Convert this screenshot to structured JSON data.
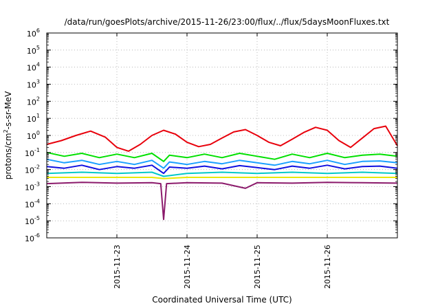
{
  "chart_data": {
    "type": "line",
    "title": "/data/run/goesPlots/archive/2015-11-26/23:00/flux/../flux/5daysMoonFluxes.txt",
    "xlabel": "Coordinated Universal Time (UTC)",
    "ylabel": "protons/cm²-s-sr-MeV",
    "ylabel_parts": {
      "pre": "protons/cm",
      "sup": "2",
      "post": "-s-sr-MeV"
    },
    "yscale": "log",
    "ylim": [
      1e-06,
      1000000.0
    ],
    "xlim": [
      "2015-11-22 00:00",
      "2015-11-27 00:00"
    ],
    "grid": true,
    "x_ticks": [
      {
        "date": "2015-11-23",
        "label": "2015-11-23"
      },
      {
        "date": "2015-11-24",
        "label": "2015-11-24"
      },
      {
        "date": "2015-11-25",
        "label": "2015-11-25"
      },
      {
        "date": "2015-11-26",
        "label": "2015-11-26"
      }
    ],
    "y_ticks": [
      {
        "value": 1e-06,
        "base": "10",
        "exp": "-6"
      },
      {
        "value": 1e-05,
        "base": "10",
        "exp": "-5"
      },
      {
        "value": 0.0001,
        "base": "10",
        "exp": "-4"
      },
      {
        "value": 0.001,
        "base": "10",
        "exp": "-3"
      },
      {
        "value": 0.01,
        "base": "10",
        "exp": "-2"
      },
      {
        "value": 0.1,
        "base": "10",
        "exp": "-1"
      },
      {
        "value": 1,
        "base": "10",
        "exp": "0"
      },
      {
        "value": 10.0,
        "base": "10",
        "exp": "1"
      },
      {
        "value": 100.0,
        "base": "10",
        "exp": "2"
      },
      {
        "value": 1000.0,
        "base": "10",
        "exp": "3"
      },
      {
        "value": 10000.0,
        "base": "10",
        "exp": "4"
      },
      {
        "value": 100000.0,
        "base": "10",
        "exp": "5"
      },
      {
        "value": 1000000.0,
        "base": "10",
        "exp": "6"
      }
    ],
    "series": [
      {
        "color": "#e8000b",
        "x": [
          "2015-11-22 00:00",
          "2015-11-22 05:00",
          "2015-11-22 10:00",
          "2015-11-22 15:00",
          "2015-11-22 20:00",
          "2015-11-23 00:00",
          "2015-11-23 04:00",
          "2015-11-23 08:00",
          "2015-11-23 12:00",
          "2015-11-23 16:00",
          "2015-11-23 20:00",
          "2015-11-24 00:00",
          "2015-11-24 04:00",
          "2015-11-24 08:00",
          "2015-11-24 12:00",
          "2015-11-24 16:00",
          "2015-11-24 20:00",
          "2015-11-25 00:00",
          "2015-11-25 04:00",
          "2015-11-25 08:00",
          "2015-11-25 12:00",
          "2015-11-25 16:00",
          "2015-11-25 20:00",
          "2015-11-26 00:00",
          "2015-11-26 04:00",
          "2015-11-26 08:00",
          "2015-11-26 12:00",
          "2015-11-26 16:00",
          "2015-11-26 20:00",
          "2015-11-27 00:00"
        ],
        "y": [
          0.3,
          0.5,
          1.0,
          1.8,
          0.8,
          0.2,
          0.12,
          0.3,
          1.0,
          2.0,
          1.2,
          0.4,
          0.22,
          0.3,
          0.7,
          1.6,
          2.2,
          1.0,
          0.4,
          0.25,
          0.6,
          1.5,
          3.0,
          2.0,
          0.5,
          0.2,
          0.7,
          2.5,
          3.5,
          0.25
        ]
      },
      {
        "color": "#00e000",
        "x": [
          "2015-11-22 00:00",
          "2015-11-22 06:00",
          "2015-11-22 12:00",
          "2015-11-22 18:00",
          "2015-11-23 00:00",
          "2015-11-23 06:00",
          "2015-11-23 12:00",
          "2015-11-23 16:00",
          "2015-11-23 18:00",
          "2015-11-24 00:00",
          "2015-11-24 06:00",
          "2015-11-24 12:00",
          "2015-11-24 18:00",
          "2015-11-25 00:00",
          "2015-11-25 06:00",
          "2015-11-25 12:00",
          "2015-11-25 18:00",
          "2015-11-26 00:00",
          "2015-11-26 06:00",
          "2015-11-26 12:00",
          "2015-11-26 18:00",
          "2015-11-27 00:00"
        ],
        "y": [
          0.1,
          0.06,
          0.09,
          0.05,
          0.08,
          0.05,
          0.09,
          0.03,
          0.07,
          0.05,
          0.08,
          0.05,
          0.09,
          0.06,
          0.04,
          0.08,
          0.05,
          0.09,
          0.05,
          0.07,
          0.08,
          0.06
        ]
      },
      {
        "color": "#1aa0ff",
        "x": [
          "2015-11-22 00:00",
          "2015-11-22 06:00",
          "2015-11-22 12:00",
          "2015-11-22 18:00",
          "2015-11-23 00:00",
          "2015-11-23 06:00",
          "2015-11-23 12:00",
          "2015-11-23 16:00",
          "2015-11-23 18:00",
          "2015-11-24 00:00",
          "2015-11-24 06:00",
          "2015-11-24 12:00",
          "2015-11-24 18:00",
          "2015-11-25 00:00",
          "2015-11-25 06:00",
          "2015-11-25 12:00",
          "2015-11-25 18:00",
          "2015-11-26 00:00",
          "2015-11-26 06:00",
          "2015-11-26 12:00",
          "2015-11-26 18:00",
          "2015-11-27 00:00"
        ],
        "y": [
          0.04,
          0.025,
          0.035,
          0.02,
          0.03,
          0.02,
          0.035,
          0.012,
          0.028,
          0.02,
          0.03,
          0.022,
          0.035,
          0.025,
          0.018,
          0.03,
          0.022,
          0.035,
          0.02,
          0.03,
          0.032,
          0.025
        ]
      },
      {
        "color": "#1010e0",
        "x": [
          "2015-11-22 00:00",
          "2015-11-22 06:00",
          "2015-11-22 12:00",
          "2015-11-22 18:00",
          "2015-11-23 00:00",
          "2015-11-23 06:00",
          "2015-11-23 12:00",
          "2015-11-23 16:00",
          "2015-11-23 18:00",
          "2015-11-24 00:00",
          "2015-11-24 06:00",
          "2015-11-24 12:00",
          "2015-11-24 18:00",
          "2015-11-25 00:00",
          "2015-11-25 06:00",
          "2015-11-25 12:00",
          "2015-11-25 18:00",
          "2015-11-26 00:00",
          "2015-11-26 06:00",
          "2015-11-26 12:00",
          "2015-11-26 18:00",
          "2015-11-27 00:00"
        ],
        "y": [
          0.015,
          0.012,
          0.018,
          0.01,
          0.015,
          0.012,
          0.018,
          0.006,
          0.014,
          0.012,
          0.016,
          0.011,
          0.017,
          0.013,
          0.01,
          0.016,
          0.012,
          0.018,
          0.011,
          0.015,
          0.016,
          0.012
        ]
      },
      {
        "color": "#00c8c8",
        "x": [
          "2015-11-22 00:00",
          "2015-11-22 12:00",
          "2015-11-23 00:00",
          "2015-11-23 12:00",
          "2015-11-23 16:00",
          "2015-11-24 00:00",
          "2015-11-24 12:00",
          "2015-11-25 00:00",
          "2015-11-25 12:00",
          "2015-11-26 00:00",
          "2015-11-26 12:00",
          "2015-11-27 00:00"
        ],
        "y": [
          0.006,
          0.007,
          0.006,
          0.007,
          0.004,
          0.006,
          0.007,
          0.006,
          0.007,
          0.006,
          0.007,
          0.006
        ]
      },
      {
        "color": "#e8e800",
        "x": [
          "2015-11-22 00:00",
          "2015-11-22 12:00",
          "2015-11-23 00:00",
          "2015-11-23 12:00",
          "2015-11-23 16:00",
          "2015-11-24 00:00",
          "2015-11-24 12:00",
          "2015-11-25 00:00",
          "2015-11-25 12:00",
          "2015-11-26 00:00",
          "2015-11-26 12:00",
          "2015-11-27 00:00"
        ],
        "y": [
          0.0035,
          0.0035,
          0.0035,
          0.0035,
          0.003,
          0.0035,
          0.0035,
          0.0035,
          0.0035,
          0.0035,
          0.0035,
          0.0035
        ]
      },
      {
        "color": "#8b1a6b",
        "x": [
          "2015-11-22 00:00",
          "2015-11-22 12:00",
          "2015-11-23 00:00",
          "2015-11-23 12:00",
          "2015-11-23 15:00",
          "2015-11-23 16:00",
          "2015-11-23 17:00",
          "2015-11-24 00:00",
          "2015-11-24 12:00",
          "2015-11-24 20:00",
          "2015-11-25 00:00",
          "2015-11-25 12:00",
          "2015-11-26 00:00",
          "2015-11-26 12:00",
          "2015-11-27 00:00"
        ],
        "y": [
          0.0015,
          0.0018,
          0.0016,
          0.0017,
          0.0015,
          1.2e-05,
          0.0015,
          0.0017,
          0.0016,
          0.0008,
          0.0017,
          0.0016,
          0.0018,
          0.0017,
          0.0016
        ]
      }
    ]
  }
}
